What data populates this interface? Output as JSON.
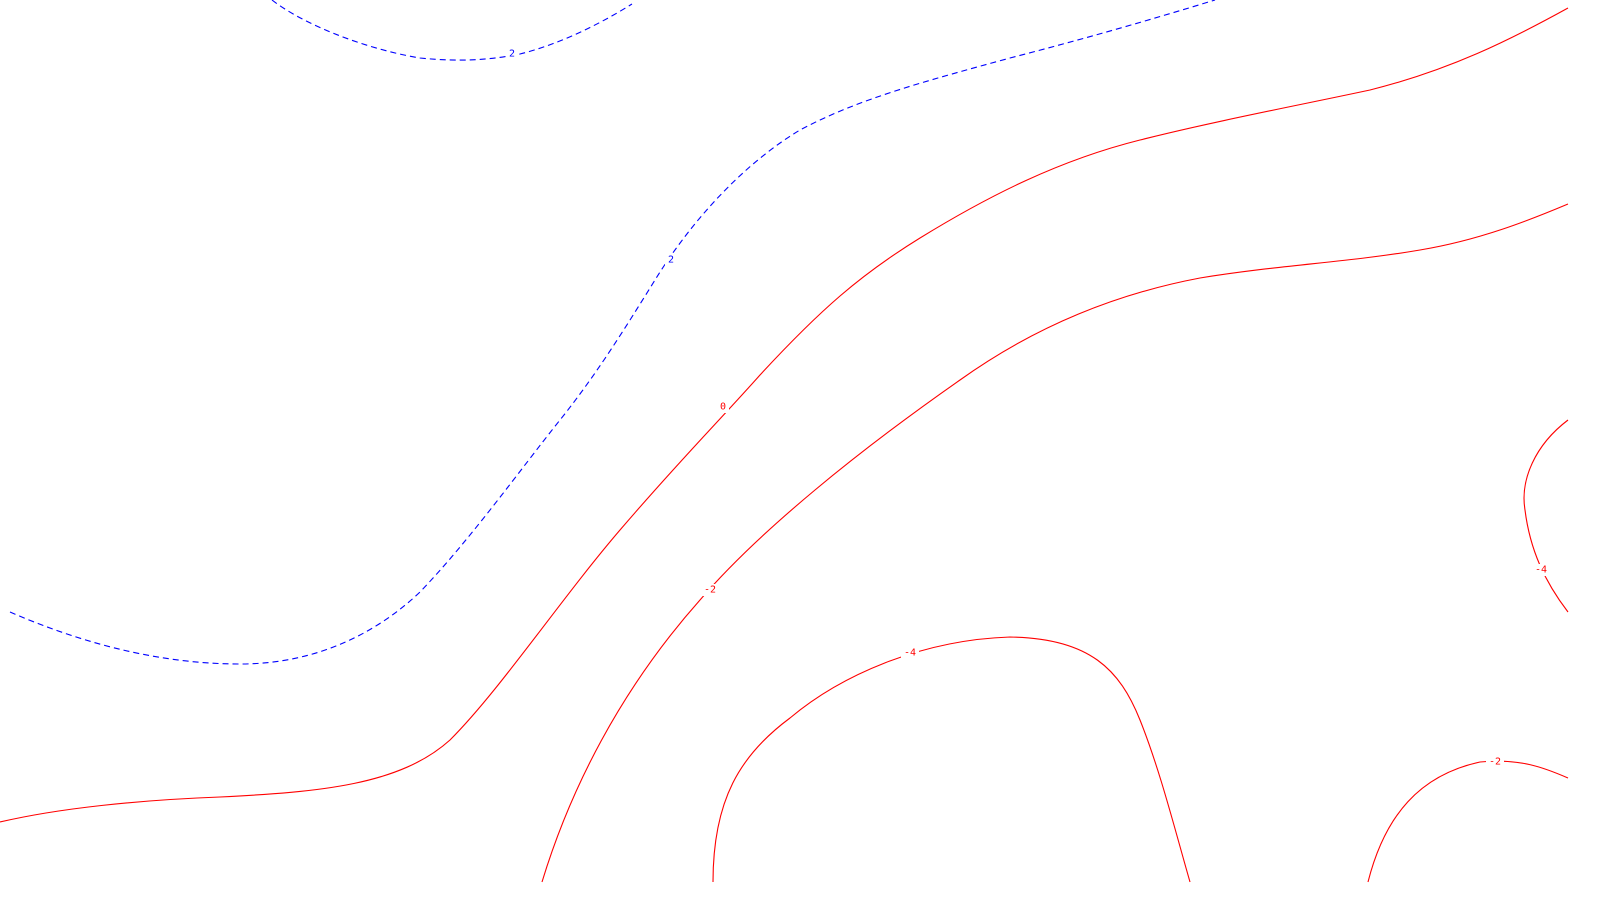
{
  "chart_data": {
    "type": "contour",
    "title": "",
    "xlabel": "",
    "ylabel": "",
    "grid": false,
    "legend": "none",
    "styles": {
      "positive": {
        "color": "#0000ff",
        "dash": "dashed"
      },
      "negative_or_zero": {
        "color": "#ff0000",
        "dash": "solid"
      }
    },
    "contours": [
      {
        "level": 2,
        "label": "2",
        "color": "#0000ff",
        "dashed": true
      },
      {
        "level": 2,
        "label": "2",
        "color": "#0000ff",
        "dashed": true
      },
      {
        "level": 0,
        "label": "0",
        "color": "#ff0000",
        "dashed": false
      },
      {
        "level": -2,
        "label": "-2",
        "color": "#ff0000",
        "dashed": false
      },
      {
        "level": -4,
        "label": "-4",
        "color": "#ff0000",
        "dashed": false
      },
      {
        "level": -4,
        "label": "-4",
        "color": "#ff0000",
        "dashed": false
      },
      {
        "level": -2,
        "label": "-2",
        "color": "#ff0000",
        "dashed": false
      }
    ]
  }
}
